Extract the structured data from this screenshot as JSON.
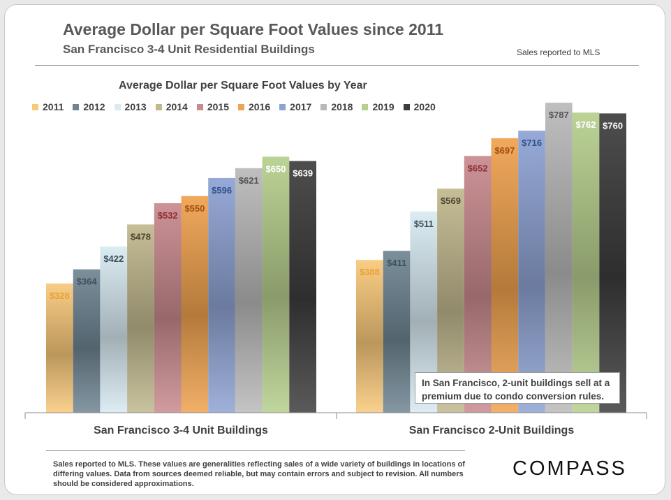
{
  "header": {
    "title": "Average Dollar per Square Foot Values since 2011",
    "subtitle": "San Francisco 3-4 Unit Residential Buildings",
    "source_note": "Sales reported to MLS"
  },
  "annotation": "In San Francisco, 2-unit buildings sell at a premium due to condo conversion rules.",
  "footnote": "Sales reported to MLS. These values are generalities reflecting sales of a wide variety of buildings in locations of differing values. Data from sources deemed reliable, but may contain errors and subject to revision. All numbers should be considered approximations.",
  "logo": "COMPASS",
  "chart_data": {
    "type": "bar",
    "title": "Average Dollar per Square Foot Values by Year",
    "categories": [
      "San Francisco 3-4 Unit Buildings",
      "San Francisco 2-Unit Buildings"
    ],
    "series": [
      {
        "name": "2011",
        "values": [
          328,
          388
        ],
        "color": "#f9c97a",
        "label_color": "#e8a13a"
      },
      {
        "name": "2012",
        "values": [
          364,
          411
        ],
        "color": "#6f8593",
        "label_color": "#3d4f5a"
      },
      {
        "name": "2013",
        "values": [
          422,
          511
        ],
        "color": "#d8eaf2",
        "label_color": "#3d4f5a"
      },
      {
        "name": "2014",
        "values": [
          478,
          569
        ],
        "color": "#c1b88e",
        "label_color": "#4a4630"
      },
      {
        "name": "2015",
        "values": [
          532,
          652
        ],
        "color": "#c98a8e",
        "label_color": "#8c2f35"
      },
      {
        "name": "2016",
        "values": [
          550,
          697
        ],
        "color": "#f0a24e",
        "label_color": "#a14f10"
      },
      {
        "name": "2017",
        "values": [
          596,
          716
        ],
        "color": "#8ea3d3",
        "label_color": "#2f4f8c"
      },
      {
        "name": "2018",
        "values": [
          621,
          787
        ],
        "color": "#b9b9b9",
        "label_color": "#555555"
      },
      {
        "name": "2019",
        "values": [
          650,
          762
        ],
        "color": "#b6cf8d",
        "label_color": "#ffffff"
      },
      {
        "name": "2020",
        "values": [
          639,
          760
        ],
        "color": "#3d3d3d",
        "label_color": "#ffffff"
      }
    ],
    "value_prefix": "$",
    "ylim": [
      0,
      800
    ],
    "grid": false,
    "legend": "top-left"
  }
}
